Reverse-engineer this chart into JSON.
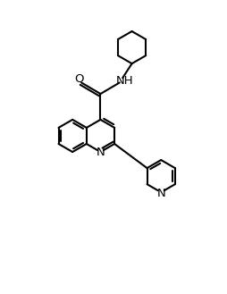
{
  "bg_color": "#ffffff",
  "line_color": "#000000",
  "lw": 1.5,
  "fs": 9.5,
  "figsize": [
    2.55,
    3.29
  ],
  "dpi": 100,
  "xlim": [
    0,
    10
  ],
  "ylim": [
    0,
    13
  ]
}
